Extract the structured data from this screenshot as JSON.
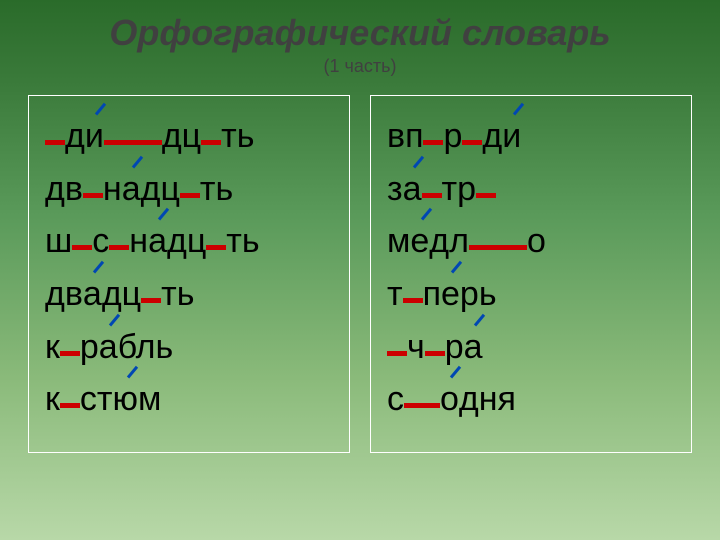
{
  "title": "Орфографический  словарь",
  "subtitle": "(1 часть)",
  "colors": {
    "blank": "#cc0000",
    "stress": "#0047b3",
    "title": "#404040",
    "text": "#000000",
    "border": "#ffffff",
    "bg_gradient": [
      "#2a6b2a",
      "#3a7a3a",
      "#5a9a5a",
      "#8aba7a",
      "#b8d8a8"
    ]
  },
  "typography": {
    "title_fontsize": 36,
    "subtitle_fontsize": 18,
    "word_fontsize": 34,
    "font_family": "Arial"
  },
  "blank_widths": {
    "normal": 20,
    "med": 36,
    "wide": 58
  },
  "left_column": [
    [
      {
        "t": "blank"
      },
      {
        "t": "text",
        "v": "д"
      },
      {
        "t": "stress",
        "v": "и"
      },
      {
        "t": "blank",
        "w": "wide"
      },
      {
        "t": "text",
        "v": "дц"
      },
      {
        "t": "blank"
      },
      {
        "t": "text",
        "v": "ть"
      }
    ],
    [
      {
        "t": "text",
        "v": "дв"
      },
      {
        "t": "blank"
      },
      {
        "t": "text",
        "v": "н"
      },
      {
        "t": "stress",
        "v": "а"
      },
      {
        "t": "text",
        "v": "дц"
      },
      {
        "t": "blank"
      },
      {
        "t": "text",
        "v": "ть"
      }
    ],
    [
      {
        "t": "text",
        "v": "ш"
      },
      {
        "t": "blank"
      },
      {
        "t": "text",
        "v": "с"
      },
      {
        "t": "blank"
      },
      {
        "t": "text",
        "v": "н"
      },
      {
        "t": "stress",
        "v": "а"
      },
      {
        "t": "text",
        "v": "дц"
      },
      {
        "t": "blank"
      },
      {
        "t": "text",
        "v": "ть"
      }
    ],
    [
      {
        "t": "text",
        "v": "дв"
      },
      {
        "t": "stress",
        "v": "а"
      },
      {
        "t": "text",
        "v": "дц"
      },
      {
        "t": "blank"
      },
      {
        "t": "text",
        "v": "ть"
      }
    ],
    [
      {
        "t": "text",
        "v": "к"
      },
      {
        "t": "blank"
      },
      {
        "t": "text",
        "v": "р"
      },
      {
        "t": "stress",
        "v": "а"
      },
      {
        "t": "text",
        "v": "бль"
      }
    ],
    [
      {
        "t": "text",
        "v": "к"
      },
      {
        "t": "blank"
      },
      {
        "t": "text",
        "v": "ст"
      },
      {
        "t": "stress",
        "v": "ю"
      },
      {
        "t": "text",
        "v": "м"
      }
    ]
  ],
  "right_column": [
    [
      {
        "t": "text",
        "v": "вп"
      },
      {
        "t": "blank"
      },
      {
        "t": "text",
        "v": "р"
      },
      {
        "t": "blank"
      },
      {
        "t": "text",
        "v": "д"
      },
      {
        "t": "stress",
        "v": "и"
      }
    ],
    [
      {
        "t": "text",
        "v": "з"
      },
      {
        "t": "stress",
        "v": "а"
      },
      {
        "t": "blank"
      },
      {
        "t": "text",
        "v": "тр"
      },
      {
        "t": "blank"
      }
    ],
    [
      {
        "t": "text",
        "v": "м"
      },
      {
        "t": "stress",
        "v": "е"
      },
      {
        "t": "text",
        "v": "дл"
      },
      {
        "t": "blank",
        "w": "wide"
      },
      {
        "t": "text",
        "v": "о"
      }
    ],
    [
      {
        "t": "text",
        "v": "т"
      },
      {
        "t": "blank"
      },
      {
        "t": "text",
        "v": "п"
      },
      {
        "t": "stress",
        "v": "е"
      },
      {
        "t": "text",
        "v": "рь"
      }
    ],
    [
      {
        "t": "blank"
      },
      {
        "t": "text",
        "v": "ч"
      },
      {
        "t": "blank"
      },
      {
        "t": "text",
        "v": "р"
      },
      {
        "t": "stress",
        "v": "а"
      }
    ],
    [
      {
        "t": "text",
        "v": "с"
      },
      {
        "t": "blank",
        "w": "med"
      },
      {
        "t": "stress",
        "v": "о"
      },
      {
        "t": "text",
        "v": "дня"
      }
    ]
  ]
}
